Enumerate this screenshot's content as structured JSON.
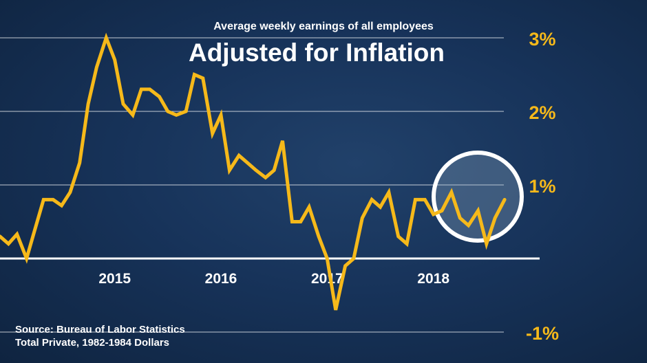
{
  "header": {
    "subtitle": "Average weekly earnings of all employees",
    "title": "Adjusted for Inflation"
  },
  "source": {
    "line1": "Source: Bureau of Labor Statistics",
    "line2": "Total Private, 1982-1984 Dollars"
  },
  "colors": {
    "line": "#f6b91a",
    "tick_label": "#f6b91a",
    "grid": "#ffffff",
    "highlight_circle": "#ffffff"
  },
  "chart_data": {
    "type": "line",
    "title": "Adjusted for Inflation",
    "subtitle": "Average weekly earnings of all employees",
    "xlabel": "",
    "ylabel": "",
    "unit": "%",
    "xlim": [
      2013.92,
      2019.0
    ],
    "ylim": [
      -1.0,
      3.0
    ],
    "y_ticks": [
      {
        "value": 3,
        "label": "3%"
      },
      {
        "value": 2,
        "label": "2%"
      },
      {
        "value": 1,
        "label": "1%"
      },
      {
        "value": -1,
        "label": "-1%"
      }
    ],
    "x_ticks": [
      {
        "value": 2015.0,
        "label": "2015"
      },
      {
        "value": 2016.0,
        "label": "2016"
      },
      {
        "value": 2017.0,
        "label": "2017"
      },
      {
        "value": 2018.0,
        "label": "2018"
      }
    ],
    "zero_line": true,
    "grid": true,
    "highlight": {
      "x": 2018.6,
      "y": 0.55,
      "note": "circled most recent values"
    },
    "series": [
      {
        "points": [
          [
            2013.92,
            0.3
          ],
          [
            2014.0,
            0.2
          ],
          [
            2014.08,
            0.33
          ],
          [
            2014.17,
            0.0
          ],
          [
            2014.25,
            0.4
          ],
          [
            2014.33,
            0.8
          ],
          [
            2014.42,
            0.8
          ],
          [
            2014.5,
            0.72
          ],
          [
            2014.58,
            0.9
          ],
          [
            2014.67,
            1.3
          ],
          [
            2014.75,
            2.1
          ],
          [
            2014.83,
            2.6
          ],
          [
            2014.92,
            3.0
          ],
          [
            2015.0,
            2.7
          ],
          [
            2015.08,
            2.1
          ],
          [
            2015.17,
            1.95
          ],
          [
            2015.25,
            2.3
          ],
          [
            2015.33,
            2.3
          ],
          [
            2015.42,
            2.2
          ],
          [
            2015.5,
            2.0
          ],
          [
            2015.58,
            1.95
          ],
          [
            2015.67,
            2.0
          ],
          [
            2015.75,
            2.5
          ],
          [
            2015.83,
            2.45
          ],
          [
            2015.92,
            1.7
          ],
          [
            2016.0,
            1.95
          ],
          [
            2016.08,
            1.2
          ],
          [
            2016.17,
            1.4
          ],
          [
            2016.25,
            1.3
          ],
          [
            2016.33,
            1.2
          ],
          [
            2016.42,
            1.1
          ],
          [
            2016.5,
            1.2
          ],
          [
            2016.58,
            1.6
          ],
          [
            2016.67,
            0.5
          ],
          [
            2016.75,
            0.5
          ],
          [
            2016.83,
            0.7
          ],
          [
            2016.92,
            0.3
          ],
          [
            2017.0,
            0.0
          ],
          [
            2017.08,
            -0.7
          ],
          [
            2017.17,
            -0.1
          ],
          [
            2017.25,
            0.0
          ],
          [
            2017.33,
            0.55
          ],
          [
            2017.42,
            0.8
          ],
          [
            2017.5,
            0.7
          ],
          [
            2017.58,
            0.9
          ],
          [
            2017.67,
            0.3
          ],
          [
            2017.75,
            0.2
          ],
          [
            2017.83,
            0.8
          ],
          [
            2017.92,
            0.8
          ],
          [
            2018.0,
            0.6
          ],
          [
            2018.08,
            0.65
          ],
          [
            2018.17,
            0.9
          ],
          [
            2018.25,
            0.55
          ],
          [
            2018.33,
            0.45
          ],
          [
            2018.42,
            0.65
          ],
          [
            2018.5,
            0.2
          ],
          [
            2018.58,
            0.55
          ],
          [
            2018.67,
            0.8
          ]
        ]
      }
    ]
  }
}
